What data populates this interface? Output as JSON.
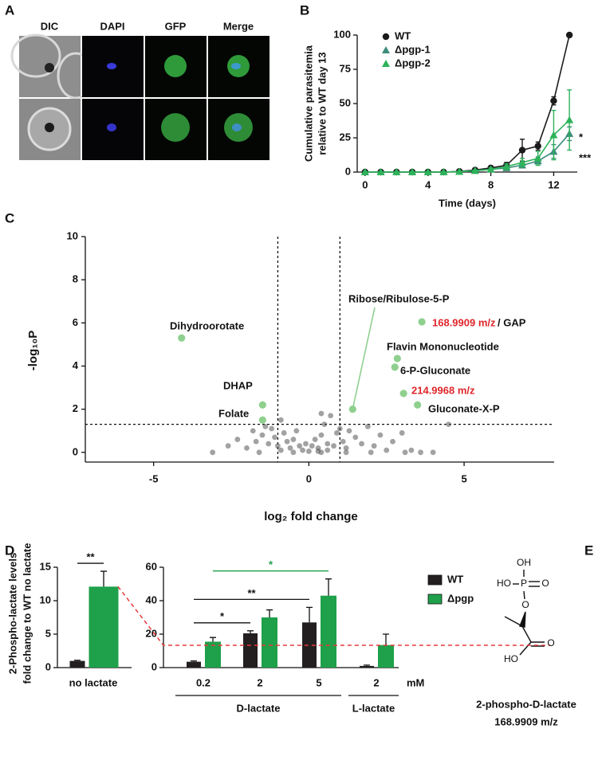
{
  "panel_labels": [
    "A",
    "B",
    "C",
    "D",
    "E"
  ],
  "panel_a": {
    "columns": [
      "DIC",
      "DAPI",
      "GFP",
      "Merge"
    ]
  },
  "chart_data": [
    {
      "type": "line",
      "ylabel": [
        "Cumulative parasitemia",
        "relative to WT day 13"
      ],
      "xlabel": "Time (days)",
      "x": [
        0,
        1,
        2,
        3,
        4,
        5,
        6,
        7,
        8,
        9,
        10,
        11,
        12,
        13
      ],
      "series": [
        {
          "name": "WT",
          "color": "#1a1a1a",
          "values": [
            0,
            0,
            0,
            0,
            0,
            0,
            0.5,
            1.5,
            3,
            5,
            16,
            19,
            52,
            100
          ],
          "errors": [
            0,
            0,
            0,
            0,
            0,
            0,
            0,
            0.5,
            1,
            2,
            8,
            3,
            3,
            0
          ]
        },
        {
          "name": "Δpgp-1",
          "color": "#3d8c7c",
          "values": [
            0,
            0,
            0,
            0,
            0,
            0,
            0.3,
            1,
            2,
            3,
            5,
            8,
            15,
            28
          ],
          "errors": [
            0,
            0,
            0,
            0,
            0,
            0,
            0,
            0.5,
            1,
            1.5,
            2,
            3,
            5,
            5
          ]
        },
        {
          "name": "Δpgp-2",
          "color": "#2db35a",
          "values": [
            0,
            0,
            0,
            0,
            0,
            0,
            0.3,
            1,
            2,
            4,
            7,
            10,
            27,
            38
          ],
          "errors": [
            0,
            0,
            0,
            0,
            0,
            0,
            0,
            0.5,
            1,
            2,
            3,
            5,
            18,
            22
          ]
        }
      ],
      "xlim": [
        -0.5,
        13.5
      ],
      "ylim": [
        0,
        100
      ],
      "xticks": [
        0,
        4,
        8,
        12
      ],
      "yticks": [
        0,
        25,
        50,
        75,
        100
      ],
      "annotations": [
        "*",
        "***"
      ]
    },
    {
      "type": "scatter",
      "xlabel": "log₂ fold change",
      "ylabel": "-log₁₀P",
      "xlim": [
        -7.2,
        7.9
      ],
      "ylim": [
        -0.45,
        10
      ],
      "xticks": [
        -5,
        0,
        5
      ],
      "yticks": [
        0,
        2,
        4,
        6,
        8,
        10
      ],
      "thresholds_x": [
        -1,
        1
      ],
      "threshold_y": 1.3,
      "series": [
        {
          "color": "#555555",
          "x": [
            -2.6,
            -2.3,
            -2.0,
            -1.8,
            -1.7,
            -1.5,
            -1.4,
            -1.3,
            -1.2,
            -1.1,
            -1.0,
            -0.9,
            -0.8,
            -0.7,
            -0.6,
            -0.5,
            -0.4,
            -0.3,
            -0.2,
            -0.1,
            0,
            0.1,
            0.2,
            0.3,
            0.4,
            0.5,
            0.6,
            0.7,
            0.8,
            0.9,
            1.0,
            1.1,
            1.2,
            1.3,
            1.5,
            1.7,
            1.9,
            2.1,
            2.3,
            2.5,
            2.7,
            3.0,
            3.3,
            3.6,
            4.0,
            4.5,
            -3.1,
            -1.6,
            -0.9,
            -0.5,
            0.4,
            1.2,
            2.0,
            3.1,
            0.4,
            0.3,
            0.6
          ],
          "y": [
            0.3,
            0.6,
            0.2,
            1.0,
            0.5,
            0.8,
            1.2,
            0.4,
            1.1,
            0.7,
            0.3,
            1.5,
            0.9,
            0.5,
            0.2,
            0.6,
            1.0,
            0.3,
            0.1,
            0.4,
            0.05,
            0.3,
            0.6,
            0.2,
            0.8,
            1.3,
            0.4,
            1.7,
            0.3,
            0.9,
            1.1,
            0.5,
            0.2,
            1.0,
            0.7,
            0.4,
            1.2,
            0.3,
            0.8,
            0.1,
            0.5,
            0.9,
            0.1,
            0.0,
            0.0,
            1.3,
            0.0,
            0.0,
            0.1,
            0.0,
            0.0,
            0.0,
            0.0,
            0.0,
            1.8,
            0.05,
            0.1
          ]
        },
        {
          "color": "#8fd08f",
          "x": [
            -4.1,
            -1.49,
            -1.49,
            1.41,
            3.64,
            2.85,
            2.77,
            3.05,
            3.5
          ],
          "y": [
            5.3,
            2.2,
            1.5,
            2.0,
            6.05,
            4.35,
            3.95,
            2.73,
            2.2
          ],
          "labels": [
            "Dihydroorotate",
            "DHAP",
            "Folate",
            "Ribose/Ribulose-5-P",
            "168.9909 m/z",
            "Flavin Mononucleotide",
            "6-P-Gluconate",
            "214.9968 m/z",
            "Gluconate-X-P"
          ],
          "label_colors": [
            "#111111",
            "#111111",
            "#111111",
            "#111111",
            "#e0262b",
            "#111111",
            "#111111",
            "#e0262b",
            "#111111"
          ]
        }
      ],
      "annotations": [
        "/ GAP"
      ]
    },
    {
      "type": "bar",
      "ylabel": [
        "2-Phospho-lactate levels",
        "fold change to WT no lactate"
      ],
      "categories": [
        "no lactate"
      ],
      "series": [
        {
          "color": "#231f20",
          "values": [
            1
          ],
          "errors": [
            0.1
          ]
        },
        {
          "color": "#1fa04a",
          "values": [
            12.1
          ],
          "errors": [
            2.3
          ]
        }
      ],
      "ylim": [
        0,
        15
      ],
      "yticks": [
        0,
        5,
        10,
        15
      ],
      "brackets": [
        {
          "from": [
            0,
            0
          ],
          "to": [
            1,
            0
          ],
          "label": "**",
          "color": "#111111"
        }
      ]
    },
    {
      "type": "bar",
      "categories": [
        "0.2",
        "2",
        "5",
        "2"
      ],
      "unit": "mM",
      "series": [
        {
          "name": "WT",
          "color": "#231f20",
          "values": [
            3.5,
            20.5,
            27,
            1
          ],
          "errors": [
            0.5,
            1.5,
            9,
            0.5
          ]
        },
        {
          "name": "Δpgp",
          "color": "#1fa04a",
          "values": [
            15.5,
            30,
            43,
            13.5
          ],
          "errors": [
            2.5,
            4.5,
            10,
            6.5
          ]
        }
      ],
      "ylim": [
        0,
        60
      ],
      "yticks": [
        0,
        20,
        40,
        60
      ],
      "groups": [
        {
          "label": "D-lactate",
          "from": 0,
          "to": 2
        },
        {
          "label": "L-lactate",
          "from": 3,
          "to": 3
        }
      ],
      "brackets": [
        {
          "from": [
            0,
            0
          ],
          "to": [
            0,
            1
          ],
          "label": "*",
          "color": "#111111"
        },
        {
          "from": [
            0,
            0
          ],
          "to": [
            0,
            2
          ],
          "label": "**",
          "color": "#111111"
        },
        {
          "from": [
            1,
            0
          ],
          "to": [
            1,
            2
          ],
          "label": "*",
          "color": "#1fa04a"
        }
      ]
    }
  ],
  "panel_e": {
    "atoms": [
      "OH",
      "HO",
      "P",
      "O",
      "O",
      "HO",
      "O"
    ],
    "name": "2-phospho-D-lactate",
    "mass": "168.9909 m/z"
  }
}
